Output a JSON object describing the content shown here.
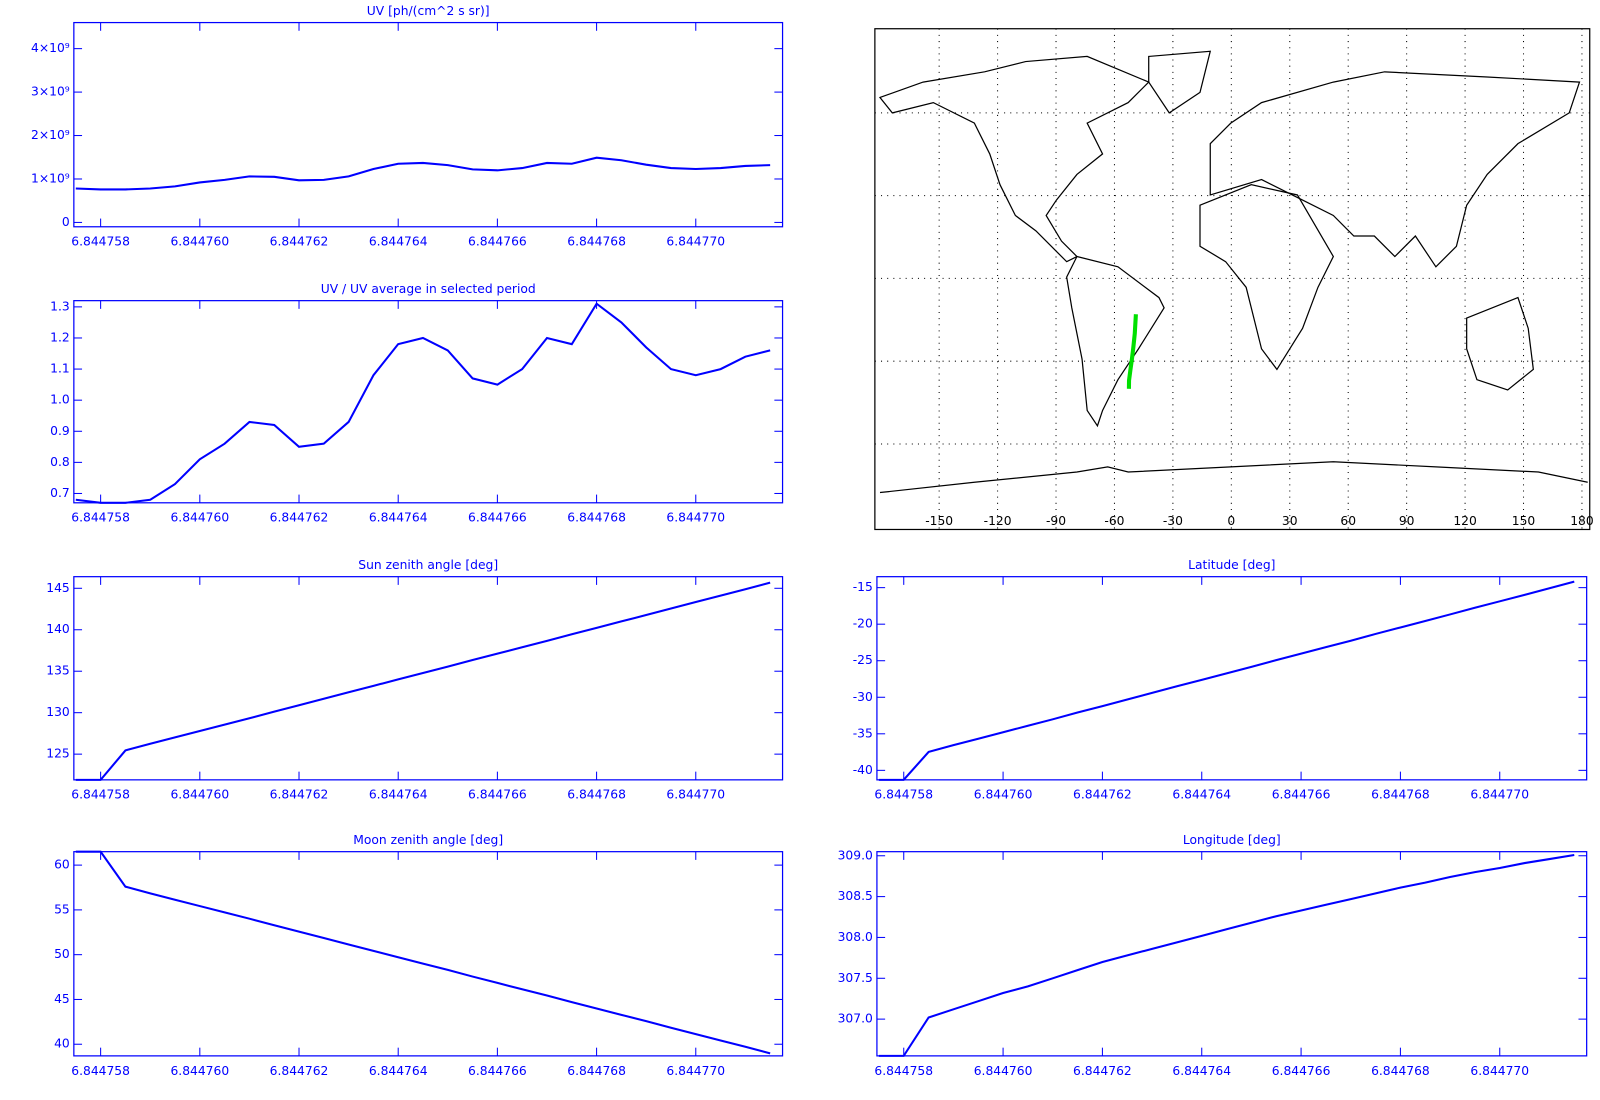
{
  "chart_data": [
    {
      "type": "line",
      "title": "UV [ph/(cm^2 s sr)]",
      "color": "#0000ff",
      "x": [
        6.8447575,
        6.844758,
        6.8447585,
        6.844759,
        6.8447595,
        6.84476,
        6.8447605,
        6.844761,
        6.8447615,
        6.844762,
        6.8447625,
        6.844763,
        6.8447635,
        6.844764,
        6.8447645,
        6.844765,
        6.8447655,
        6.844766,
        6.8447665,
        6.844767,
        6.8447675,
        6.844768,
        6.8447685,
        6.844769,
        6.8447695,
        6.84477,
        6.8447705,
        6.844771,
        6.8447715
      ],
      "values": [
        780000000,
        760000000,
        760000000,
        780000000,
        830000000,
        920000000,
        980000000,
        1060000000,
        1050000000,
        970000000,
        980000000,
        1060000000,
        1230000000,
        1350000000,
        1370000000,
        1320000000,
        1220000000,
        1200000000,
        1250000000,
        1370000000,
        1350000000,
        1490000000,
        1430000000,
        1330000000,
        1250000000,
        1230000000,
        1250000000,
        1300000000,
        1320000000
      ],
      "xlim": [
        6.84475746,
        6.84477175
      ],
      "xticks": [
        6.844758,
        {
          "value": 6.84476,
          "label": "6.844760"
        },
        6.844762,
        6.844764,
        6.844766,
        6.844768,
        {
          "value": 6.84477,
          "label": "6.844770"
        }
      ],
      "ylim": [
        -100000000,
        4600000000
      ],
      "yticks": [
        0,
        {
          "value": 1000000000,
          "label": "1×10⁹"
        },
        {
          "value": 2000000000,
          "label": "2×10⁹"
        },
        {
          "value": 3000000000,
          "label": "3×10⁹"
        },
        {
          "value": 4000000000,
          "label": "4×10⁹"
        }
      ]
    },
    {
      "type": "line",
      "title": "UV / UV average in selected period",
      "color": "#0000ff",
      "x": [
        6.8447575,
        6.844758,
        6.8447585,
        6.844759,
        6.8447595,
        6.84476,
        6.8447605,
        6.844761,
        6.8447615,
        6.844762,
        6.8447625,
        6.844763,
        6.8447635,
        6.844764,
        6.8447645,
        6.844765,
        6.8447655,
        6.844766,
        6.8447665,
        6.844767,
        6.8447675,
        6.844768,
        6.8447685,
        6.844769,
        6.8447695,
        6.84477,
        6.8447705,
        6.844771,
        6.8447715
      ],
      "values": [
        0.68,
        0.67,
        0.67,
        0.68,
        0.73,
        0.81,
        0.86,
        0.93,
        0.92,
        0.85,
        0.86,
        0.93,
        1.08,
        1.18,
        1.2,
        1.16,
        1.07,
        1.05,
        1.1,
        1.2,
        1.18,
        1.31,
        1.25,
        1.17,
        1.1,
        1.08,
        1.1,
        1.14,
        1.16
      ],
      "xlim": [
        6.84475746,
        6.84477175
      ],
      "xticks": [
        6.844758,
        {
          "value": 6.84476,
          "label": "6.844760"
        },
        6.844762,
        6.844764,
        6.844766,
        6.844768,
        {
          "value": 6.84477,
          "label": "6.844770"
        }
      ],
      "ylim": [
        0.67,
        1.32
      ],
      "yticks": [
        0.7,
        0.8,
        0.9,
        {
          "value": 1,
          "label": "1.0"
        },
        1.1,
        1.2,
        1.3
      ]
    },
    {
      "type": "map",
      "color": "#00e000",
      "x": [
        -52.6,
        -52.5,
        -51.8,
        -51,
        -50.3,
        -49.6,
        -49
      ],
      "values": [
        -40,
        -37,
        -33,
        -29,
        -25,
        -20,
        -13
      ],
      "xlim": [
        -183,
        184
      ],
      "xticks": [
        -150,
        -120,
        -90,
        -60,
        -30,
        0,
        30,
        60,
        90,
        120,
        150,
        180
      ],
      "ylim": [
        -91,
        90.5
      ],
      "yticks": [
        -60,
        -30,
        0,
        30,
        60
      ]
    },
    {
      "type": "line",
      "title": "Sun zenith angle [deg]",
      "color": "#0000ff",
      "x": [
        6.8447575,
        6.844758,
        6.8447585,
        6.844759,
        6.8447595,
        6.84476,
        6.8447605,
        6.844761,
        6.8447615,
        6.844762,
        6.8447625,
        6.844763,
        6.8447635,
        6.844764,
        6.8447645,
        6.844765,
        6.8447655,
        6.844766,
        6.8447665,
        6.844767,
        6.8447675,
        6.844768,
        6.8447685,
        6.844769,
        6.8447695,
        6.84477,
        6.8447705,
        6.844771,
        6.8447715
      ],
      "values": [
        121.9,
        121.9,
        125.45,
        126.25,
        127.02,
        127.79,
        128.56,
        129.33,
        130.13,
        130.9,
        131.67,
        132.47,
        133.24,
        134.01,
        134.78,
        135.55,
        136.35,
        137.12,
        137.89,
        138.66,
        139.46,
        140.23,
        141.0,
        141.77,
        142.57,
        143.34,
        144.11,
        144.88,
        145.68
      ],
      "xlim": [
        6.84475746,
        6.84477175
      ],
      "xticks": [
        6.844758,
        {
          "value": 6.84476,
          "label": "6.844760"
        },
        6.844762,
        6.844764,
        6.844766,
        6.844768,
        {
          "value": 6.84477,
          "label": "6.844770"
        }
      ],
      "ylim": [
        121.9,
        146.4
      ],
      "yticks": [
        125,
        130,
        135,
        140,
        145
      ]
    },
    {
      "type": "line",
      "title": "Latitude [deg]",
      "color": "#0000ff",
      "x": [
        6.8447575,
        6.844758,
        6.8447585,
        6.844759,
        6.8447595,
        6.84476,
        6.8447605,
        6.844761,
        6.8447615,
        6.844762,
        6.8447625,
        6.844763,
        6.8447635,
        6.844764,
        6.8447645,
        6.844765,
        6.8447655,
        6.844766,
        6.8447665,
        6.844767,
        6.8447675,
        6.844768,
        6.8447685,
        6.844769,
        6.8447695,
        6.84477,
        6.8447705,
        6.844771,
        6.8447715
      ],
      "values": [
        -41.3,
        -41.3,
        -37.48,
        -36.56,
        -35.67,
        -34.78,
        -33.9,
        -33.01,
        -32.09,
        -31.2,
        -30.31,
        -29.39,
        -28.5,
        -27.62,
        -26.73,
        -25.84,
        -24.92,
        -24.03,
        -23.15,
        -22.26,
        -21.33,
        -20.45,
        -19.56,
        -18.67,
        -17.75,
        -16.87,
        -15.98,
        -15.09,
        -14.17
      ],
      "xlim": [
        6.84475746,
        6.84477175
      ],
      "xticks": [
        6.844758,
        {
          "value": 6.84476,
          "label": "6.844760"
        },
        6.844762,
        6.844764,
        6.844766,
        6.844768,
        {
          "value": 6.84477,
          "label": "6.844770"
        }
      ],
      "ylim": [
        -41.3,
        -13.5
      ],
      "yticks": [
        -40,
        -35,
        -30,
        -25,
        -20,
        -15
      ]
    },
    {
      "type": "line",
      "title": "Moon zenith angle [deg]",
      "color": "#0000ff",
      "x": [
        6.8447575,
        6.844758,
        6.8447585,
        6.844759,
        6.8447595,
        6.84476,
        6.8447605,
        6.844761,
        6.8447615,
        6.844762,
        6.8447625,
        6.844763,
        6.8447635,
        6.844764,
        6.8447645,
        6.844765,
        6.8447655,
        6.844766,
        6.8447665,
        6.844767,
        6.8447675,
        6.844768,
        6.8447685,
        6.844769,
        6.8447695,
        6.84477,
        6.8447705,
        6.844771,
        6.8447715
      ],
      "values": [
        61.5,
        61.5,
        57.59,
        56.85,
        56.14,
        55.43,
        54.73,
        54.02,
        53.28,
        52.57,
        51.86,
        51.13,
        50.42,
        49.71,
        49.0,
        48.3,
        47.56,
        46.85,
        46.14,
        45.44,
        44.7,
        43.99,
        43.28,
        42.58,
        41.84,
        41.13,
        40.42,
        39.72,
        38.98
      ],
      "xlim": [
        6.84475746,
        6.84477175
      ],
      "xticks": [
        6.844758,
        {
          "value": 6.84476,
          "label": "6.844760"
        },
        6.844762,
        6.844764,
        6.844766,
        6.844768,
        {
          "value": 6.84477,
          "label": "6.844770"
        }
      ],
      "ylim": [
        38.7,
        61.5
      ],
      "yticks": [
        40,
        45,
        50,
        55,
        60
      ]
    },
    {
      "type": "line",
      "title": "Longitude [deg]",
      "color": "#0000ff",
      "x": [
        6.8447575,
        6.844758,
        6.8447585,
        6.844759,
        6.8447595,
        6.84476,
        6.8447605,
        6.844761,
        6.8447615,
        6.844762,
        6.8447625,
        6.844763,
        6.8447635,
        6.844764,
        6.8447645,
        6.844765,
        6.8447655,
        6.844766,
        6.8447665,
        6.844767,
        6.8447675,
        6.844768,
        6.8447685,
        6.844769,
        6.8447695,
        6.84477,
        6.8447705,
        6.844771,
        6.8447715
      ],
      "values": [
        306.55,
        306.55,
        307.02,
        307.12,
        307.22,
        307.32,
        307.4,
        307.5,
        307.6,
        307.7,
        307.78,
        307.86,
        307.94,
        308.02,
        308.1,
        308.18,
        308.26,
        308.33,
        308.4,
        308.47,
        308.54,
        308.61,
        308.67,
        308.74,
        308.8,
        308.85,
        308.91,
        308.96,
        309.01
      ],
      "xlim": [
        6.84475746,
        6.84477175
      ],
      "xticks": [
        6.844758,
        {
          "value": 6.84476,
          "label": "6.844760"
        },
        6.844762,
        6.844764,
        6.844766,
        6.844768,
        {
          "value": 6.84477,
          "label": "6.844770"
        }
      ],
      "ylim": [
        306.55,
        309.05
      ],
      "yticks": [
        {
          "value": 307,
          "label": "307.0"
        },
        {
          "value": 307.5,
          "label": "307.5"
        },
        {
          "value": 308,
          "label": "308.0"
        },
        {
          "value": 308.5,
          "label": "308.5"
        },
        {
          "value": 309,
          "label": "309.0"
        }
      ]
    }
  ]
}
